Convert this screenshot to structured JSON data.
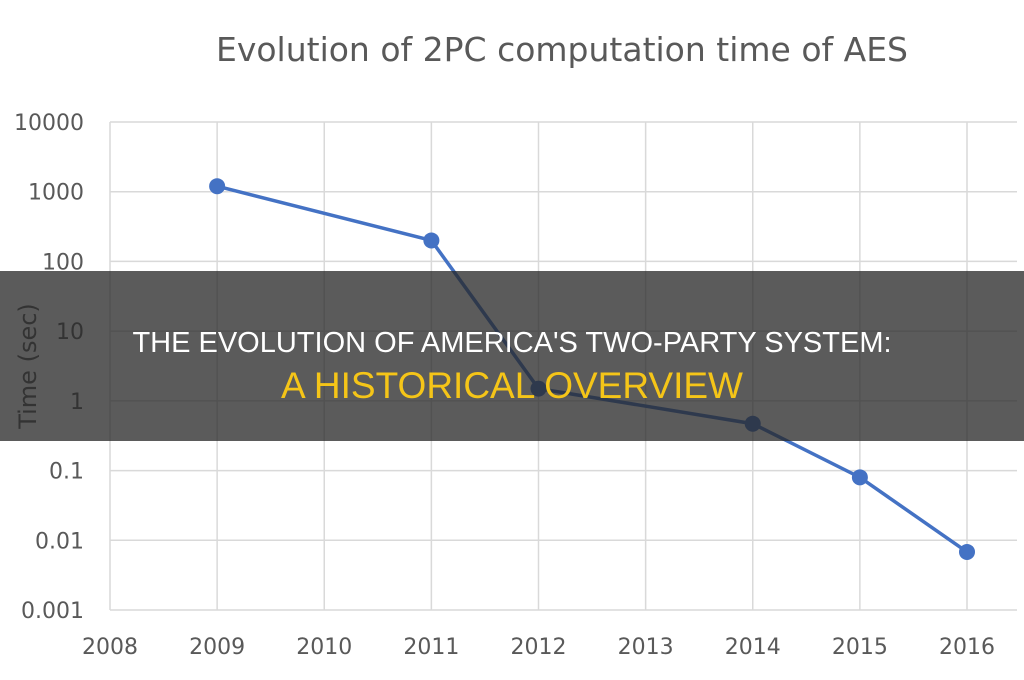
{
  "chart_data": {
    "type": "line",
    "title": "Evolution of 2PC computation time of AES",
    "xlabel": "",
    "ylabel": "Time (sec)",
    "y_scale": "log",
    "xlim": [
      2008,
      2016
    ],
    "ylim": [
      0.001,
      10000
    ],
    "x_ticks": [
      "2008",
      "2009",
      "2010",
      "2011",
      "2012",
      "2013",
      "2014",
      "2015",
      "2016"
    ],
    "y_ticks": [
      "0.001",
      "0.01",
      "0.1",
      "1",
      "10",
      "100",
      "1000",
      "10000"
    ],
    "grid": true,
    "series": [
      {
        "x": [
          2009,
          2011,
          2012,
          2014,
          2015,
          2016
        ],
        "values": [
          1200,
          200,
          1.5,
          0.47,
          0.08,
          0.0068
        ],
        "color": "#4472C4"
      }
    ]
  },
  "banner": {
    "line1": "THE EVOLUTION OF AMERICA'S TWO-PARTY SYSTEM:",
    "line2": "A HISTORICAL OVERVIEW"
  }
}
